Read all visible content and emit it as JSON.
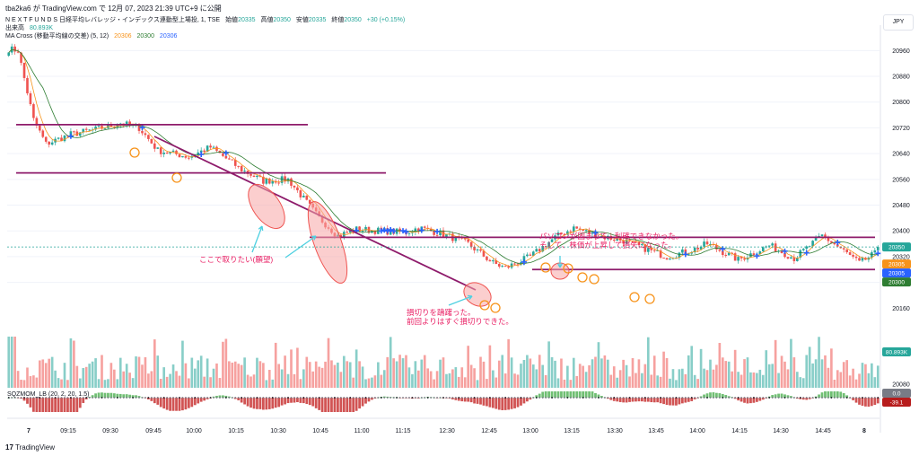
{
  "header": {
    "published": "tba2ka6 が TradingView.com で 12月 07, 2023 21:39 UTC+9 に公開"
  },
  "legend": {
    "symbol": "N E X T  F U N D S  日経平均レバレッジ・インデックス連動型上場投, 1, TSE",
    "open_label": "始値",
    "open_value": "20335",
    "high_label": "高値",
    "high_value": "20350",
    "low_label": "安値",
    "low_value": "20335",
    "close_label": "終値",
    "close_value": "20350",
    "change": "+30 (+0.15%)",
    "volume_label": "出来高",
    "volume_value": "80.893K",
    "ma_label": "MA Cross (移動平均線の交差) (5, 12)",
    "ma_v1": "20306",
    "ma_v2": "20300",
    "ma_v3": "20306",
    "osc_label": "SQZMOM_LB (20, 2, 20, 1.5)"
  },
  "currency": "JPY",
  "footer": {
    "brand": "TradingView"
  },
  "colors": {
    "up": "#26a69a",
    "down": "#ef5350",
    "ma_fast": "#f7931a",
    "ma_slow": "#2e7d32",
    "cross": "#2962ff",
    "resistance": "#8e1b6b",
    "annot": "#e91e63",
    "ellipse_fill": "#f8a5a5",
    "circle": "#f7931a",
    "arrow": "#4dd0e1"
  },
  "chart_data": {
    "type": "candlestick",
    "ylim": [
      20080,
      21000
    ],
    "y_ticks": [
      20080,
      20160,
      20240,
      20320,
      20400,
      20480,
      20560,
      20640,
      20720,
      20800,
      20880,
      20960
    ],
    "x_ticks": [
      "7",
      "09:15",
      "09:30",
      "09:45",
      "10:00",
      "10:15",
      "10:30",
      "10:45",
      "11:00",
      "11:15",
      "12:30",
      "12:45",
      "13:00",
      "13:15",
      "13:30",
      "13:45",
      "14:00",
      "14:15",
      "14:30",
      "14:45",
      "8"
    ],
    "price_path": [
      [
        0,
        20965
      ],
      [
        3,
        20960
      ],
      [
        8,
        20745
      ],
      [
        12,
        20670
      ],
      [
        20,
        20700
      ],
      [
        28,
        20715
      ],
      [
        36,
        20735
      ],
      [
        42,
        20720
      ],
      [
        48,
        20650
      ],
      [
        58,
        20630
      ],
      [
        65,
        20660
      ],
      [
        75,
        20590
      ],
      [
        82,
        20555
      ],
      [
        90,
        20560
      ],
      [
        100,
        20440
      ],
      [
        106,
        20385
      ],
      [
        112,
        20405
      ],
      [
        120,
        20400
      ],
      [
        128,
        20395
      ],
      [
        132,
        20410
      ],
      [
        140,
        20390
      ],
      [
        148,
        20360
      ],
      [
        156,
        20300
      ],
      [
        160,
        20285
      ],
      [
        168,
        20320
      ],
      [
        176,
        20380
      ],
      [
        182,
        20410
      ],
      [
        190,
        20385
      ],
      [
        198,
        20370
      ],
      [
        205,
        20345
      ],
      [
        212,
        20320
      ],
      [
        220,
        20340
      ],
      [
        225,
        20360
      ],
      [
        235,
        20310
      ],
      [
        245,
        20355
      ],
      [
        253,
        20315
      ],
      [
        262,
        20385
      ],
      [
        268,
        20345
      ],
      [
        274,
        20300
      ],
      [
        280,
        20335
      ]
    ],
    "resistance_levels": [
      20730,
      20580,
      20380,
      20280
    ],
    "last_price_labels": [
      "20350",
      "20305",
      "20305",
      "20300"
    ],
    "volume_label": "80.893K",
    "osc_labels": [
      "0.0",
      "-39.1"
    ],
    "annotations": [
      {
        "text": "ここで取りたい(願望)"
      },
      {
        "lines": [
          "損切りを躊躇った。",
          "前回よりはすぐ損切りできた。"
        ]
      },
      {
        "lines": [
          "パソコンが固まって、利確できなかった。",
          "そして、株価が上昇して損失になった。"
        ]
      }
    ]
  }
}
